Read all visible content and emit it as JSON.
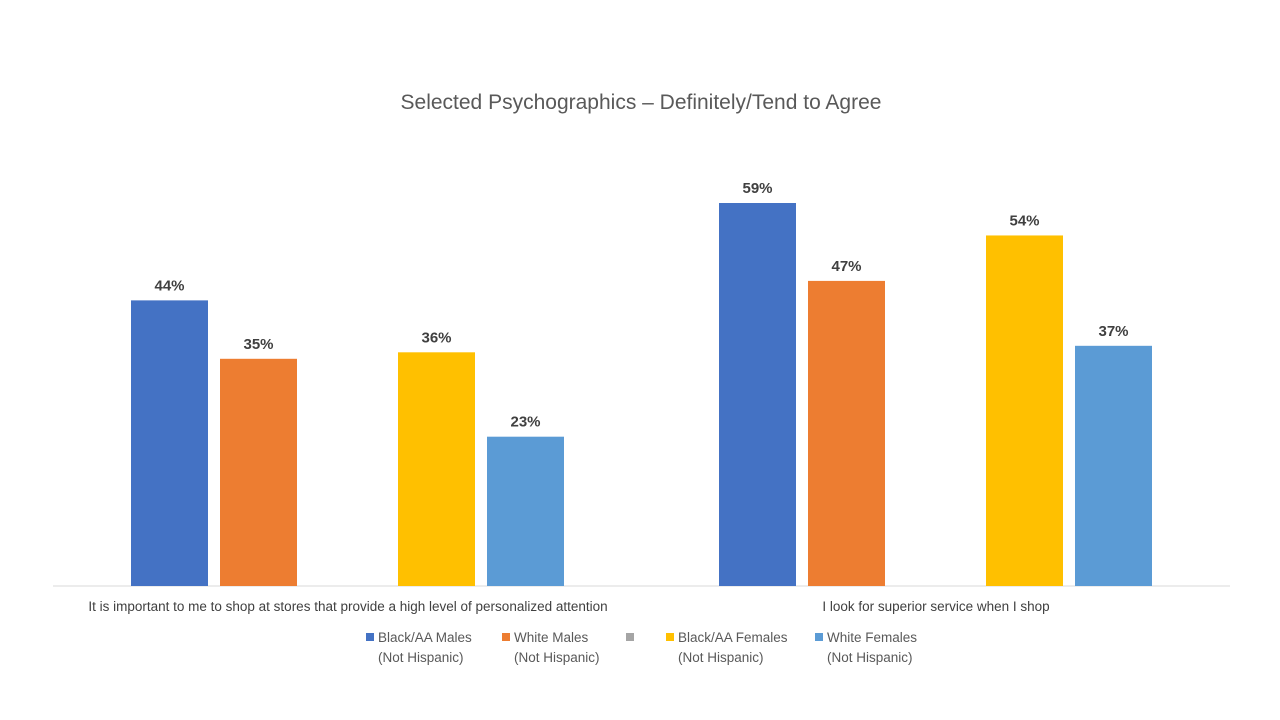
{
  "chart_data": {
    "type": "bar",
    "title": "Selected Psychographics – Definitely/Tend to Agree",
    "categories": [
      "It is important to me to shop at stores that provide a high level of personalized attention",
      "I look for superior service when I shop"
    ],
    "series": [
      {
        "name": [
          "Black/AA Males",
          "(Not Hispanic)"
        ],
        "color": "#4472C4",
        "values": [
          44,
          59
        ],
        "labels": [
          "44%",
          "59%"
        ]
      },
      {
        "name": [
          "White Males",
          "(Not Hispanic)"
        ],
        "color": "#ED7D31",
        "values": [
          35,
          47
        ],
        "labels": [
          "35%",
          "47%"
        ]
      },
      {
        "name": [
          "",
          ""
        ],
        "color": "#A5A5A5",
        "values": [
          null,
          null
        ],
        "labels": [
          "",
          ""
        ]
      },
      {
        "name": [
          "Black/AA Females",
          "(Not Hispanic)"
        ],
        "color": "#FFC000",
        "values": [
          36,
          54
        ],
        "labels": [
          "36%",
          "54%"
        ]
      },
      {
        "name": [
          "White Females",
          "(Not Hispanic)"
        ],
        "color": "#5B9BD5",
        "values": [
          23,
          37
        ],
        "labels": [
          "23%",
          "37%"
        ]
      }
    ],
    "ylim": [
      0,
      59
    ],
    "grid": false,
    "legend_position": "bottom",
    "axis_line_color": "#D9D9D9",
    "text_color": "#404040"
  }
}
